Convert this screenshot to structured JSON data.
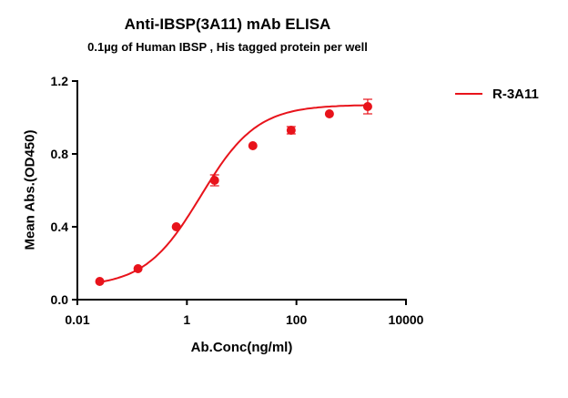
{
  "chart_data": {
    "type": "scatter",
    "title": "Anti-IBSP(3A11) mAb ELISA",
    "subtitle": "0.1µg of Human IBSP , His tagged protein per well",
    "xlabel": "Ab.Conc(ng/ml)",
    "ylabel": "Mean Abs.(OD450)",
    "xscale": "log",
    "xlim": [
      0.01,
      10000
    ],
    "ylim": [
      0,
      1.2
    ],
    "xticks": [
      0.01,
      1,
      100,
      10000
    ],
    "xtick_labels": [
      "0.01",
      "1",
      "100",
      "10000"
    ],
    "yticks": [
      0,
      0.4,
      0.8,
      1.2
    ],
    "ytick_labels": [
      "0.0",
      "0.4",
      "0.8",
      "1.2"
    ],
    "grid": false,
    "legend_position": "top-right",
    "series": [
      {
        "name": "R-3A11",
        "color": "#e8131b",
        "x": [
          0.0256,
          0.128,
          0.64,
          3.2,
          16,
          80,
          400,
          2000
        ],
        "y": [
          0.1,
          0.17,
          0.4,
          0.655,
          0.845,
          0.93,
          1.02,
          1.06
        ],
        "error": [
          0.005,
          0.005,
          0.005,
          0.03,
          0.005,
          0.02,
          0.005,
          0.04
        ],
        "fit": {
          "model": "4PL",
          "bottom": 0.07,
          "top": 1.07,
          "ec50": 1.8,
          "hill": 0.85
        }
      }
    ]
  }
}
